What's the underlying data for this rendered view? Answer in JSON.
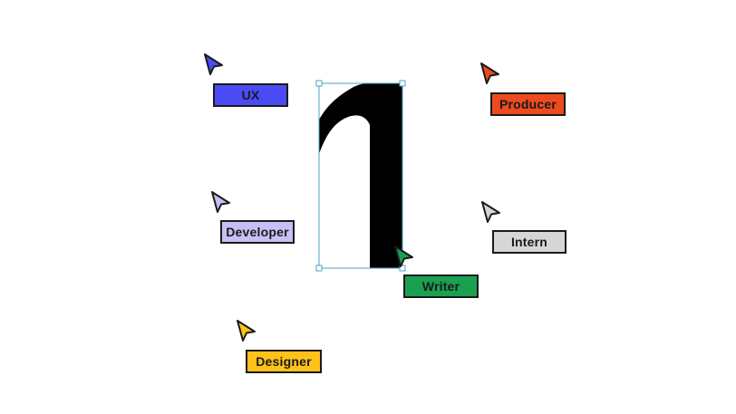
{
  "artwork": {
    "glyph": "1",
    "glyph_color": "#000000",
    "selection_color": "#4aa3c8"
  },
  "collaborators": [
    {
      "name": "UX",
      "color": "#4b4bf5",
      "text_color": "#1a1a1a",
      "icon": "pointer-cursor-icon"
    },
    {
      "name": "Producer",
      "color": "#ee4a1f",
      "text_color": "#1a1a1a",
      "icon": "pointer-cursor-icon"
    },
    {
      "name": "Developer",
      "color": "#c7c0f5",
      "text_color": "#1a1a1a",
      "icon": "pointer-cursor-icon"
    },
    {
      "name": "Intern",
      "color": "#d6d6d6",
      "text_color": "#1a1a1a",
      "icon": "pointer-cursor-icon"
    },
    {
      "name": "Writer",
      "color": "#1aa050",
      "text_color": "#1a1a1a",
      "icon": "pointer-cursor-icon"
    },
    {
      "name": "Designer",
      "color": "#ffc21a",
      "text_color": "#1a1a1a",
      "icon": "pointer-cursor-icon"
    }
  ]
}
